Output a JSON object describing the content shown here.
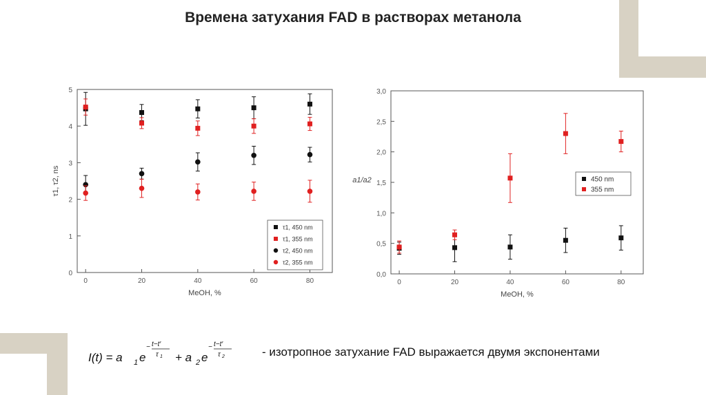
{
  "title": "Времена затухания FAD в растворах метанола",
  "caption": "- изотропное затухание FAD выражается двумя экспонентами",
  "colors": {
    "black": "#111111",
    "red": "#e02020",
    "frame": "#d8d2c4"
  },
  "chart_data": [
    {
      "type": "scatter",
      "xlabel": "MeOH, %",
      "ylabel": "τ1, τ2, ns",
      "xlim": [
        -3,
        88
      ],
      "ylim": [
        0,
        5
      ],
      "xticks": [
        "0",
        "20",
        "40",
        "60",
        "80"
      ],
      "yticks": [
        "0",
        "1",
        "2",
        "3",
        "4",
        "5"
      ],
      "grid": false,
      "legend_position": "bottom-right",
      "series": [
        {
          "name": "τ1, 450 nm",
          "marker": "square",
          "color": "#111111",
          "x": [
            0,
            20,
            40,
            60,
            80
          ],
          "y": [
            4.47,
            4.37,
            4.47,
            4.5,
            4.6
          ],
          "err": [
            0.45,
            0.22,
            0.25,
            0.3,
            0.28
          ]
        },
        {
          "name": "τ1, 355 nm",
          "marker": "square",
          "color": "#e02020",
          "x": [
            0,
            20,
            40,
            60,
            80
          ],
          "y": [
            4.52,
            4.08,
            3.94,
            4.0,
            4.06
          ],
          "err": [
            0.22,
            0.15,
            0.2,
            0.2,
            0.18
          ]
        },
        {
          "name": "τ2, 450 nm",
          "marker": "circle",
          "color": "#111111",
          "x": [
            0,
            20,
            40,
            60,
            80
          ],
          "y": [
            2.4,
            2.7,
            3.02,
            3.2,
            3.22
          ],
          "err": [
            0.25,
            0.15,
            0.25,
            0.25,
            0.2
          ]
        },
        {
          "name": "τ2, 355 nm",
          "marker": "circle",
          "color": "#e02020",
          "x": [
            0,
            20,
            40,
            60,
            80
          ],
          "y": [
            2.17,
            2.3,
            2.2,
            2.22,
            2.22
          ],
          "err": [
            0.2,
            0.25,
            0.22,
            0.25,
            0.3
          ]
        }
      ]
    },
    {
      "type": "scatter",
      "xlabel": "MeOH, %",
      "ylabel": "a1/a2",
      "xlim": [
        -3,
        88
      ],
      "ylim": [
        0,
        3
      ],
      "xticks": [
        "0",
        "20",
        "40",
        "60",
        "80"
      ],
      "yticks": [
        "0,0",
        "0,5",
        "1,0",
        "1,5",
        "2,0",
        "2,5",
        "3,0"
      ],
      "grid": false,
      "legend_position": "middle-right",
      "series": [
        {
          "name": "450 nm",
          "marker": "square",
          "color": "#111111",
          "x": [
            0,
            20,
            40,
            60,
            80
          ],
          "y": [
            0.42,
            0.43,
            0.44,
            0.55,
            0.59
          ],
          "err": [
            0.1,
            0.23,
            0.2,
            0.2,
            0.2
          ]
        },
        {
          "name": "355 nm",
          "marker": "square",
          "color": "#e02020",
          "x": [
            0,
            20,
            40,
            60,
            80
          ],
          "y": [
            0.44,
            0.64,
            1.57,
            2.3,
            2.17
          ],
          "err": [
            0.1,
            0.08,
            0.4,
            0.33,
            0.17
          ]
        }
      ]
    }
  ]
}
